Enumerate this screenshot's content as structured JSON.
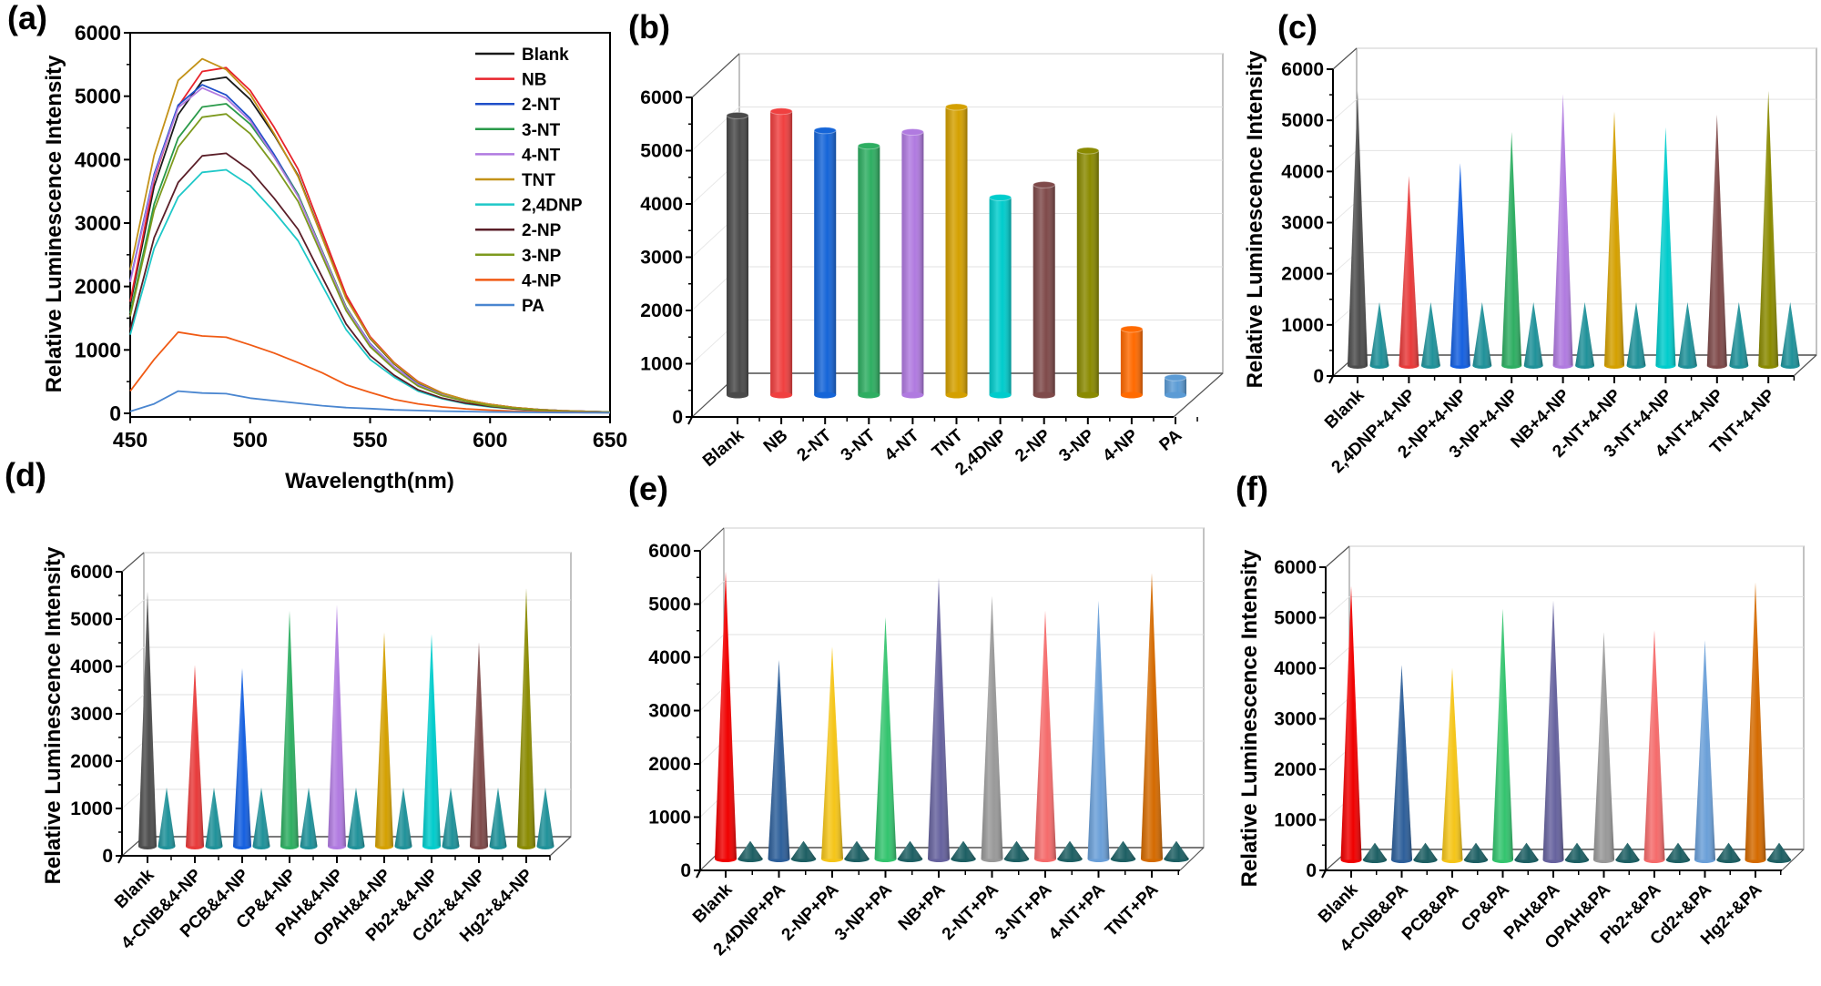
{
  "panel_labels": [
    "(a)",
    "(b)",
    "(c)",
    "(d)",
    "(e)",
    "(f)"
  ],
  "chart_data": [
    {
      "panel": "(a)",
      "type": "line",
      "xlabel": "Wavelength(nm)",
      "ylabel": "Relative Luminescence Intensity",
      "xlim": [
        450,
        650
      ],
      "ylim": [
        0,
        6000
      ],
      "xticks": [
        450,
        500,
        550,
        600,
        650
      ],
      "yticks": [
        0,
        1000,
        2000,
        3000,
        4000,
        5000,
        6000
      ],
      "grid": false,
      "legend_position": "top-right",
      "x": [
        450,
        460,
        470,
        480,
        490,
        500,
        510,
        520,
        530,
        540,
        550,
        560,
        570,
        580,
        590,
        600,
        610,
        620,
        630,
        640,
        650
      ],
      "series": [
        {
          "name": "Blank",
          "color": "#1a1a1a",
          "values": [
            1710,
            3580,
            4710,
            5240,
            5300,
            4950,
            4390,
            3750,
            2780,
            1820,
            1180,
            780,
            480,
            310,
            210,
            140,
            90,
            60,
            40,
            30,
            20
          ]
        },
        {
          "name": "NB",
          "color": "#e8232b",
          "values": [
            1760,
            3690,
            4840,
            5390,
            5450,
            5090,
            4510,
            3850,
            2860,
            1870,
            1210,
            800,
            500,
            320,
            210,
            140,
            90,
            60,
            40,
            30,
            20
          ]
        },
        {
          "name": "2-NT",
          "color": "#1f4fc9",
          "values": [
            2090,
            3770,
            4860,
            5180,
            5020,
            4650,
            4080,
            3450,
            2560,
            1670,
            1100,
            730,
            460,
            290,
            200,
            130,
            80,
            60,
            40,
            30,
            20
          ]
        },
        {
          "name": "3-NT",
          "color": "#2a9a4a",
          "values": [
            1580,
            3300,
            4340,
            4830,
            4880,
            4560,
            4040,
            3450,
            2560,
            1680,
            1080,
            720,
            440,
            290,
            190,
            130,
            80,
            50,
            30,
            20,
            20
          ]
        },
        {
          "name": "4-NT",
          "color": "#b07ae0",
          "values": [
            2070,
            3730,
            4820,
            5130,
            4970,
            4610,
            4040,
            3420,
            2540,
            1660,
            1090,
            730,
            450,
            290,
            200,
            130,
            80,
            60,
            40,
            30,
            20
          ]
        },
        {
          "name": "TNT",
          "color": "#c39218",
          "values": [
            2260,
            4070,
            5250,
            5590,
            5420,
            5030,
            4410,
            3730,
            2770,
            1810,
            1190,
            790,
            490,
            320,
            210,
            140,
            90,
            60,
            40,
            30,
            20
          ]
        },
        {
          "name": "2,4DNP",
          "color": "#1fc8c8",
          "values": [
            1240,
            2600,
            3410,
            3800,
            3840,
            3590,
            3180,
            2720,
            2020,
            1320,
            850,
            570,
            350,
            230,
            150,
            100,
            70,
            40,
            30,
            20,
            20
          ]
        },
        {
          "name": "2-NP",
          "color": "#5a1e28",
          "values": [
            1320,
            2770,
            3640,
            4060,
            4100,
            3830,
            3390,
            2900,
            2150,
            1410,
            910,
            600,
            370,
            240,
            160,
            110,
            70,
            50,
            30,
            20,
            20
          ]
        },
        {
          "name": "3-NP",
          "color": "#7d9a1e",
          "values": [
            1530,
            3200,
            4200,
            4670,
            4720,
            4410,
            3910,
            3340,
            2480,
            1620,
            1050,
            700,
            430,
            280,
            190,
            120,
            80,
            50,
            30,
            20,
            20
          ]
        },
        {
          "name": "4-NP",
          "color": "#f05a14",
          "values": [
            350,
            850,
            1280,
            1220,
            1200,
            1080,
            950,
            800,
            640,
            450,
            330,
            220,
            150,
            100,
            70,
            50,
            35,
            25,
            20,
            15,
            10
          ]
        },
        {
          "name": "PA",
          "color": "#4a86d0",
          "values": [
            30,
            150,
            350,
            320,
            310,
            240,
            200,
            160,
            120,
            90,
            75,
            55,
            45,
            35,
            28,
            22,
            18,
            15,
            12,
            10,
            8
          ]
        }
      ]
    },
    {
      "panel": "(b)",
      "type": "bar",
      "style": "3d-cylinder",
      "ylabel": "",
      "ylim": [
        0,
        6000
      ],
      "yticks": [
        0,
        1000,
        2000,
        3000,
        4000,
        5000,
        6000
      ],
      "categories": [
        "Blank",
        "NB",
        "2-NT",
        "3-NT",
        "4-NT",
        "TNT",
        "2,4DNP",
        "2-NP",
        "3-NP",
        "4-NP",
        "PA"
      ],
      "values": [
        5250,
        5330,
        4970,
        4680,
        4940,
        5410,
        3710,
        3950,
        4590,
        1240,
        330
      ],
      "colors": [
        "#4a4a4a",
        "#f04040",
        "#1565d8",
        "#2eae62",
        "#b07ae0",
        "#d4a000",
        "#00cccc",
        "#7f4a4a",
        "#8a8a00",
        "#ff6a00",
        "#5b9bd5"
      ]
    },
    {
      "panel": "(c)",
      "type": "bar",
      "style": "3d-cone",
      "ylabel": "Relative Luminescence Intensity",
      "ylim": [
        0,
        6000
      ],
      "yticks": [
        0,
        1000,
        2000,
        3000,
        4000,
        5000,
        6000
      ],
      "categories": [
        "Blank",
        "2,4DNP+4-NP",
        "2-NP+4-NP",
        "3-NP+4-NP",
        "NB+4-NP",
        "2-NT+4-NP",
        "3-NT+4-NP",
        "4-NT+4-NP",
        "TNT+4-NP"
      ],
      "series": [
        {
          "values": [
            5370,
            3710,
            3960,
            4570,
            5310,
            4970,
            4660,
            4910,
            5370
          ],
          "colors": [
            "#4d4d4d",
            "#e83a3a",
            "#1560e0",
            "#2eae62",
            "#b07ae0",
            "#d4a000",
            "#00cccc",
            "#7f4a4a",
            "#8a8a00"
          ]
        },
        {
          "values": [
            1240,
            1240,
            1240,
            1240,
            1240,
            1240,
            1240,
            1240,
            1240
          ],
          "colors": [
            "#1f9199"
          ]
        }
      ]
    },
    {
      "panel": "(d)",
      "type": "bar",
      "style": "3d-cone",
      "ylabel": "Relative Luminescence Intensity",
      "ylim": [
        0,
        6000
      ],
      "yticks": [
        0,
        1000,
        2000,
        3000,
        4000,
        5000,
        6000
      ],
      "categories": [
        "Blank",
        "4-CNB&4-NP",
        "PCB&4-NP",
        "CP&4-NP",
        "PAH&4-NP",
        "OPAH&4-NP",
        "Pb2+&4-NP",
        "Cd2+&4-NP",
        "Hg2+&4-NP"
      ],
      "series": [
        {
          "values": [
            5380,
            3830,
            3760,
            4970,
            5100,
            4520,
            4480,
            4310,
            5450
          ],
          "colors": [
            "#4d4d4d",
            "#e83a3a",
            "#1560e0",
            "#2eae62",
            "#b07ae0",
            "#d4a000",
            "#00cccc",
            "#7f4a4a",
            "#8a8a00"
          ]
        },
        {
          "values": [
            1240,
            1240,
            1240,
            1240,
            1240,
            1240,
            1240,
            1240,
            1240
          ],
          "colors": [
            "#1f9199"
          ]
        }
      ]
    },
    {
      "panel": "(e)",
      "type": "bar",
      "style": "3d-cone",
      "ylabel": "",
      "ylim": [
        0,
        6000
      ],
      "yticks": [
        0,
        1000,
        2000,
        3000,
        4000,
        5000,
        6000
      ],
      "categories": [
        "Blank",
        "2,4DNP+PA",
        "2-NP+PA",
        "3-NP+PA",
        "NB+PA",
        "2-NT+PA",
        "3-NT+PA",
        "4-NT+PA",
        "TNT+PA"
      ],
      "series": [
        {
          "values": [
            5400,
            3740,
            3990,
            4540,
            5280,
            4940,
            4660,
            4850,
            5370
          ],
          "colors": [
            "#f00000",
            "#2d5f9a",
            "#f5c518",
            "#33c46e",
            "#66629e",
            "#999999",
            "#f56b6b",
            "#6a9fd8",
            "#d46a00"
          ]
        },
        {
          "values": [
            340,
            340,
            340,
            340,
            340,
            340,
            340,
            340,
            340
          ],
          "colors": [
            "#1d5f63"
          ]
        }
      ]
    },
    {
      "panel": "(f)",
      "type": "bar",
      "style": "3d-cone",
      "ylabel": "Relative Luminescence Intensity",
      "ylim": [
        0,
        6000
      ],
      "yticks": [
        0,
        1000,
        2000,
        3000,
        4000,
        5000,
        6000
      ],
      "categories": [
        "Blank",
        "4-CNB&PA",
        "PCB&PA",
        "CP&PA",
        "PAH&PA",
        "OPAH&PA",
        "Pb2+&PA",
        "Cd2+&PA",
        "Hg2+&PA"
      ],
      "series": [
        {
          "values": [
            5420,
            3860,
            3800,
            4970,
            5130,
            4510,
            4550,
            4350,
            5490
          ],
          "colors": [
            "#f00000",
            "#2d5f9a",
            "#f5c518",
            "#33c46e",
            "#66629e",
            "#999999",
            "#f56b6b",
            "#6a9fd8",
            "#d46a00"
          ]
        },
        {
          "values": [
            340,
            340,
            340,
            340,
            340,
            340,
            340,
            340,
            340
          ],
          "colors": [
            "#1d5f63"
          ]
        }
      ]
    }
  ]
}
